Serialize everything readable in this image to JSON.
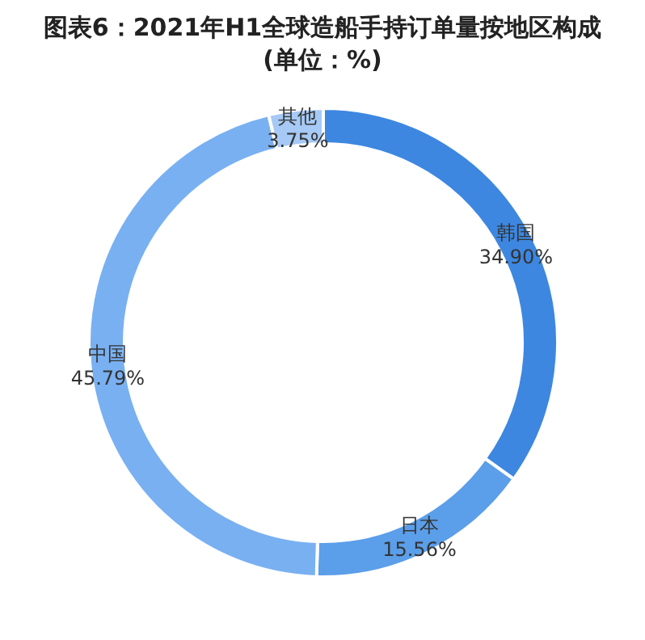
{
  "chart_data": {
    "type": "donut",
    "title": "图表6：2021年H1全球造船手持订单量按地区构成(单位：%)",
    "categories": [
      "韩国",
      "日本",
      "中国",
      "其他"
    ],
    "values": [
      34.9,
      15.56,
      45.79,
      3.75
    ],
    "colors": [
      "#3d87e0",
      "#5b9ee9",
      "#79b0f1",
      "#a6c9f5"
    ],
    "value_labels": [
      "34.90%",
      "15.56%",
      "45.79%",
      "3.75%"
    ],
    "legend": false
  }
}
